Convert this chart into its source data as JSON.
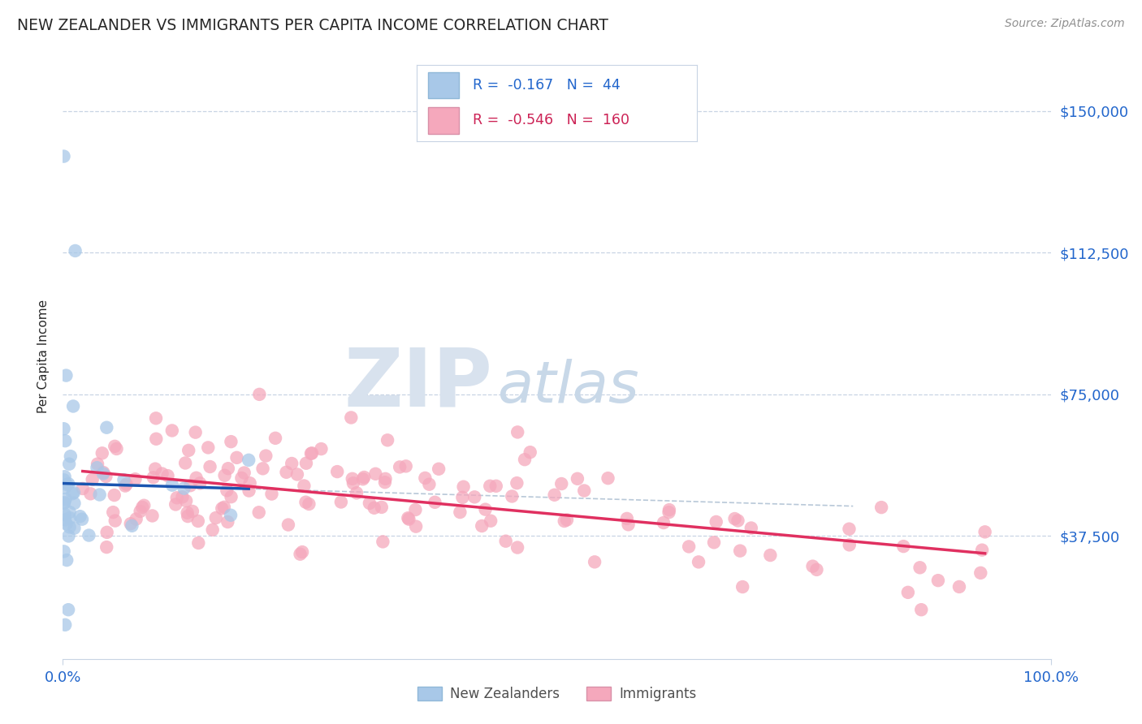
{
  "title": "NEW ZEALANDER VS IMMIGRANTS PER CAPITA INCOME CORRELATION CHART",
  "source_text": "Source: ZipAtlas.com",
  "ylabel": "Per Capita Income",
  "x_tick_labels": [
    "0.0%",
    "100.0%"
  ],
  "y_tick_labels": [
    "$37,500",
    "$75,000",
    "$112,500",
    "$150,000"
  ],
  "y_tick_values": [
    37500,
    75000,
    112500,
    150000
  ],
  "x_min": 0.0,
  "x_max": 1.0,
  "y_min": 5000,
  "y_max": 165000,
  "legend_labels": [
    "New Zealanders",
    "Immigrants"
  ],
  "nz_R": -0.167,
  "nz_N": 44,
  "imm_R": -0.546,
  "imm_N": 160,
  "nz_color": "#a8c8e8",
  "imm_color": "#f5a8bc",
  "nz_line_color": "#1a55b0",
  "imm_line_color": "#e03060",
  "dashed_line_color": "#b8c8d8",
  "background_color": "#ffffff",
  "grid_color": "#c8d4e4",
  "watermark_zip_color": "#d8e2ee",
  "watermark_atlas_color": "#c8d8e8",
  "title_color": "#282828",
  "axis_label_color": "#282828",
  "tick_label_color": "#2266cc",
  "source_color": "#909090",
  "legend_box_color": "#f0f4f8",
  "legend_border_color": "#c8d4e4",
  "legend_nz_text_color": "#2266cc",
  "legend_imm_text_color": "#cc2255"
}
